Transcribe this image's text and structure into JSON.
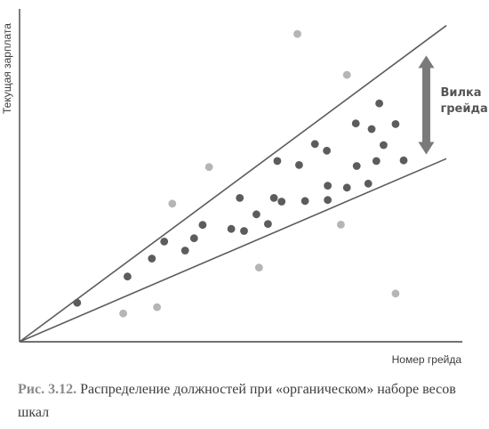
{
  "chart_data": {
    "type": "scatter",
    "title": "",
    "xlabel": "Номер грейда",
    "ylabel": "Текущая зарплата",
    "xlim": [
      0,
      100
    ],
    "ylim": [
      0,
      100
    ],
    "grid": false,
    "legend": "none",
    "colors": {
      "inside": "#5c5c5c",
      "outside": "#b5b5b5",
      "band": "#5c5c5c",
      "axes": "#444444",
      "arrow": "#7a7a7a"
    },
    "band": {
      "upper": {
        "x1": 0,
        "y1": 0,
        "x2": 100,
        "y2": 95
      },
      "lower": {
        "x1": 0,
        "y1": 0,
        "x2": 100,
        "y2": 55
      }
    },
    "annotation": {
      "line1": "Вилка",
      "line2": "грейда",
      "x": 95.3,
      "y_from": 56.3,
      "y_to": 86
    },
    "series": [
      {
        "group": "inside",
        "points": [
          [
            13.5,
            11.7
          ],
          [
            25.3,
            19.6
          ],
          [
            31.0,
            25.0
          ],
          [
            33.9,
            30.1
          ],
          [
            38.8,
            27.4
          ],
          [
            40.9,
            31.1
          ],
          [
            42.9,
            35.1
          ],
          [
            49.6,
            33.9
          ],
          [
            51.6,
            43.2
          ],
          [
            52.6,
            33.3
          ],
          [
            55.5,
            38.3
          ],
          [
            58.2,
            35.4
          ],
          [
            59.6,
            43.2
          ],
          [
            60.4,
            54.3
          ],
          [
            61.4,
            42.1
          ],
          [
            65.5,
            53.1
          ],
          [
            66.9,
            42.3
          ],
          [
            69.2,
            59.4
          ],
          [
            72.0,
            57.4
          ],
          [
            72.2,
            46.9
          ],
          [
            72.2,
            42.6
          ],
          [
            76.7,
            46.3
          ],
          [
            78.8,
            65.6
          ],
          [
            79.0,
            52.8
          ],
          [
            81.7,
            47.5
          ],
          [
            82.5,
            63.9
          ],
          [
            83.6,
            54.3
          ],
          [
            84.3,
            71.6
          ],
          [
            85.3,
            59.1
          ],
          [
            88.1,
            65.4
          ],
          [
            90.0,
            54.5
          ]
        ]
      },
      {
        "group": "outside",
        "points": [
          [
            24.3,
            8.5
          ],
          [
            32.2,
            10.4
          ],
          [
            35.8,
            41.5
          ],
          [
            44.4,
            52.5
          ],
          [
            56.1,
            22.3
          ],
          [
            65.1,
            92.5
          ],
          [
            75.3,
            35.2
          ],
          [
            76.7,
            80.2
          ],
          [
            88.1,
            14.5
          ]
        ]
      }
    ]
  },
  "caption": {
    "label": "Рис. 3.12.",
    "text": "Распределение должностей при «органическом» наборе весов шкал"
  }
}
